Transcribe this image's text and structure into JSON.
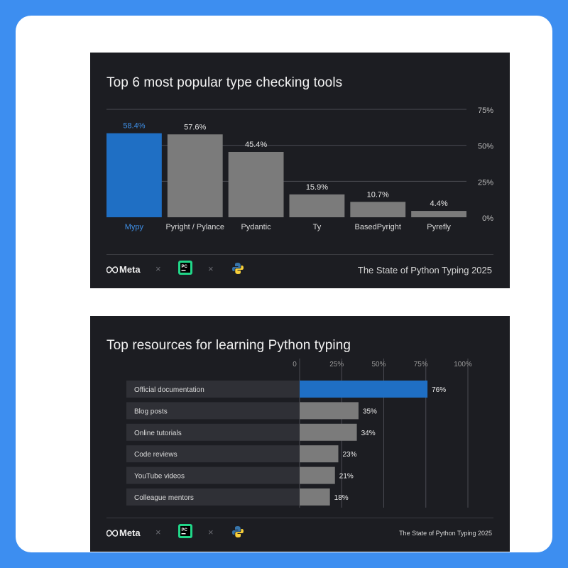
{
  "footer": {
    "brand_text": "Meta",
    "separator": "×",
    "source": "The State of Python Typing 2025"
  },
  "colors": {
    "background": "#3d8ef0",
    "panel": "#1c1d22",
    "highlight": "#1f6fc4",
    "bar": "#7b7b7b",
    "label_track": "#2f3036",
    "grid": "#4a4b52"
  },
  "chart_data": [
    {
      "type": "bar",
      "title": "Top 6 most popular type checking tools",
      "categories": [
        "Mypy",
        "Pyright / Pylance",
        "Pydantic",
        "Ty",
        "BasedPyright",
        "Pyrefly"
      ],
      "values": [
        58.4,
        57.6,
        45.4,
        15.9,
        10.7,
        4.4
      ],
      "value_labels": [
        "58.4%",
        "57.6%",
        "45.4%",
        "15.9%",
        "10.7%",
        "4.4%"
      ],
      "highlight_index": 0,
      "ylim": [
        0,
        75
      ],
      "yticks": [
        "0%",
        "25%",
        "50%",
        "75%"
      ],
      "ytick_values": [
        0,
        25,
        50,
        75
      ],
      "grid": true,
      "orientation": "vertical"
    },
    {
      "type": "bar",
      "title": "Top resources for learning Python typing",
      "categories": [
        "Official documentation",
        "Blog posts",
        "Online tutorials",
        "Code reviews",
        "YouTube videos",
        "Colleague mentors"
      ],
      "values": [
        76,
        35,
        34,
        23,
        21,
        18
      ],
      "value_labels": [
        "76%",
        "35%",
        "34%",
        "23%",
        "21%",
        "18%"
      ],
      "highlight_index": 0,
      "xlim": [
        0,
        100
      ],
      "xticks": [
        "0",
        "25%",
        "50%",
        "75%",
        "100%"
      ],
      "xtick_values": [
        0,
        25,
        50,
        75,
        100
      ],
      "grid": true,
      "orientation": "horizontal"
    }
  ]
}
